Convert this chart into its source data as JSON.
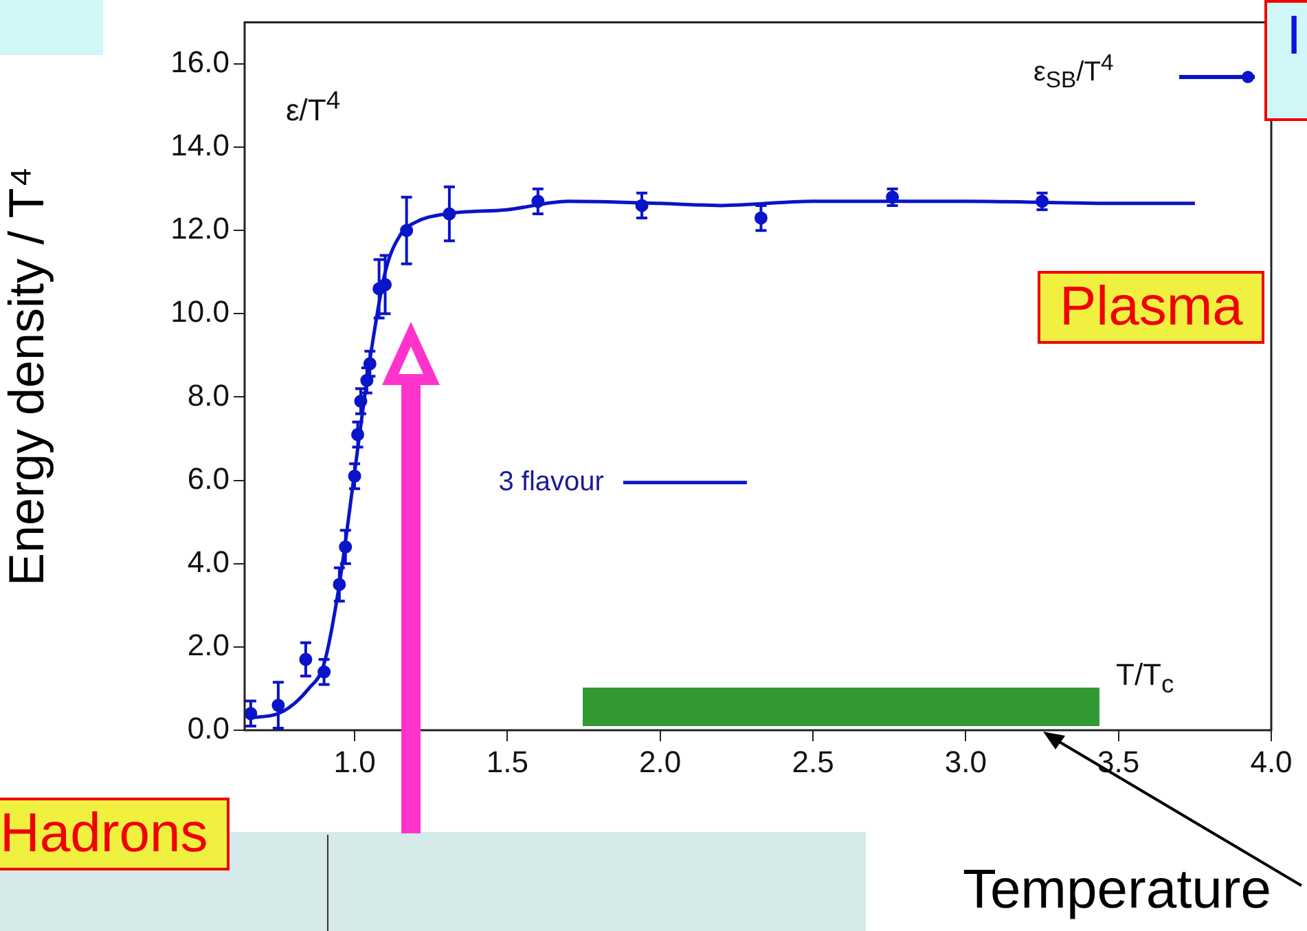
{
  "chart_data": {
    "type": "line",
    "xlabel": "Temperature",
    "ylabel": "Energy density / T⁴",
    "annotations": [
      "ε/T$^{4}$",
      "ε$_{SB}$/T$^{4}$",
      "T/T$_{c}$",
      "Plasma",
      "Hadrons",
      "I"
    ],
    "xlim": [
      0.64,
      4.0
    ],
    "ylim": [
      0,
      17
    ],
    "xticks": [
      {
        "value": 1,
        "label": "1.0"
      },
      {
        "value": 1.5,
        "label": "1.5"
      },
      {
        "value": 2,
        "label": "2.0"
      },
      {
        "value": 2.5,
        "label": "2.5"
      },
      {
        "value": 3,
        "label": "3.0"
      },
      {
        "value": 3.5,
        "label": "3.5"
      },
      {
        "value": 4,
        "label": "4.0"
      }
    ],
    "yticks": [
      {
        "value": 0,
        "label": "0.0"
      },
      {
        "value": 2,
        "label": "2.0"
      },
      {
        "value": 4,
        "label": "4.0"
      },
      {
        "value": 6,
        "label": "6.0"
      },
      {
        "value": 8,
        "label": "8.0"
      },
      {
        "value": 10,
        "label": "10.0"
      },
      {
        "value": 12,
        "label": "12.0"
      },
      {
        "value": 14,
        "label": "14.0"
      },
      {
        "value": 16,
        "label": "16.0"
      }
    ],
    "grid": false,
    "legend": "center",
    "series": [
      {
        "type": "scatter",
        "color": "#0a14c8",
        "marker": "circle",
        "x": [
          0.66,
          0.75,
          0.84,
          0.9,
          0.95,
          0.97,
          1.0,
          1.01,
          1.02,
          1.04,
          1.05,
          1.08,
          1.1,
          1.17,
          1.31,
          1.6,
          1.94,
          2.33,
          2.76,
          3.25
        ],
        "values": [
          0.4,
          0.6,
          1.7,
          1.4,
          3.5,
          4.4,
          6.1,
          7.1,
          7.9,
          8.4,
          8.8,
          10.6,
          10.7,
          12.0,
          12.4,
          12.7,
          12.6,
          12.3,
          12.8,
          12.7
        ],
        "errors": [
          0.3,
          0.55,
          0.4,
          0.3,
          0.4,
          0.4,
          0.3,
          0.3,
          0.3,
          0.3,
          0.3,
          0.7,
          0.7,
          0.8,
          0.65,
          0.3,
          0.3,
          0.3,
          0.2,
          0.2
        ]
      },
      {
        "type": "line",
        "name": "3 flavour",
        "color": "#0a14c8",
        "marker": "none",
        "line_style": "solid",
        "x": [
          0.65,
          0.75,
          0.85,
          0.9,
          0.95,
          1.0,
          1.05,
          1.1,
          1.15,
          1.2,
          1.3,
          1.5,
          1.7,
          2.0,
          2.2,
          2.5,
          3.0,
          3.5,
          3.75
        ],
        "values": [
          0.3,
          0.4,
          1.0,
          1.6,
          3.5,
          6.2,
          8.9,
          11.0,
          11.9,
          12.2,
          12.4,
          12.5,
          12.7,
          12.65,
          12.6,
          12.7,
          12.7,
          12.65,
          12.65
        ]
      }
    ]
  }
}
